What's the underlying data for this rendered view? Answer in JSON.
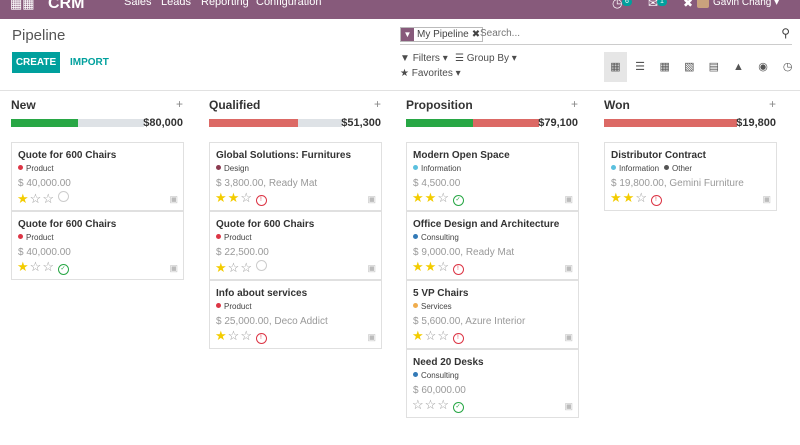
{
  "topbar": {
    "app_name": "CRM",
    "menu": [
      "Sales",
      "Leads",
      "Reporting",
      "Configuration"
    ],
    "badge_activity": "6",
    "badge_messages": "1",
    "user_name": "Gavin Chang"
  },
  "control_panel": {
    "breadcrumb": "Pipeline",
    "create_label": "CREATE",
    "import_label": "IMPORT",
    "search": {
      "facet_value": "My Pipeline",
      "placeholder": "Search..."
    },
    "filters_label": "Filters",
    "groupby_label": "Group By",
    "favorites_label": "Favorites"
  },
  "columns": [
    {
      "title": "New",
      "sum": "$80,000",
      "progress": {
        "green": 0.5,
        "red": 0.0
      },
      "cards": [
        {
          "title": "Quote for 600 Chairs",
          "tags": [
            {
              "name": "Product",
              "color": "#dc3545"
            }
          ],
          "amount": "$ 40,000.00",
          "stars": 1,
          "activity": "grey"
        },
        {
          "title": "Quote for 600 Chairs",
          "tags": [
            {
              "name": "Product",
              "color": "#dc3545"
            }
          ],
          "amount": "$ 40,000.00",
          "stars": 1,
          "activity": "green"
        }
      ]
    },
    {
      "title": "Qualified",
      "sum": "$51,300",
      "progress": {
        "green": 0.0,
        "red": 0.67
      },
      "cards": [
        {
          "title": "Global Solutions: Furnitures",
          "tags": [
            {
              "name": "Design",
              "color": "#8b3a50"
            }
          ],
          "amount": "$ 3,800.00, Ready Mat",
          "stars": 2,
          "activity": "red"
        },
        {
          "title": "Quote for 600 Chairs",
          "tags": [
            {
              "name": "Product",
              "color": "#dc3545"
            }
          ],
          "amount": "$ 22,500.00",
          "stars": 1,
          "activity": "grey"
        },
        {
          "title": "Info about services",
          "tags": [
            {
              "name": "Product",
              "color": "#dc3545"
            }
          ],
          "amount": "$ 25,000.00, Deco Addict",
          "stars": 1,
          "activity": "red"
        }
      ]
    },
    {
      "title": "Proposition",
      "sum": "$79,100",
      "progress": {
        "green": 0.5,
        "red": 0.5
      },
      "cards": [
        {
          "title": "Modern Open Space",
          "tags": [
            {
              "name": "Information",
              "color": "#5bc0de"
            }
          ],
          "amount": "$ 4,500.00",
          "stars": 2,
          "activity": "green"
        },
        {
          "title": "Office Design and Architecture",
          "tags": [
            {
              "name": "Consulting",
              "color": "#337ab7"
            }
          ],
          "amount": "$ 9,000.00, Ready Mat",
          "stars": 2,
          "activity": "red"
        },
        {
          "title": "5 VP Chairs",
          "tags": [
            {
              "name": "Services",
              "color": "#f0ad4e"
            }
          ],
          "amount": "$ 5,600.00, Azure Interior",
          "stars": 1,
          "activity": "red"
        },
        {
          "title": "Need 20 Desks",
          "tags": [
            {
              "name": "Consulting",
              "color": "#337ab7"
            }
          ],
          "amount": "$ 60,000.00",
          "stars": 0,
          "activity": "green"
        }
      ]
    },
    {
      "title": "Won",
      "sum": "$19,800",
      "progress": {
        "green": 0.0,
        "red": 1.0
      },
      "cards": [
        {
          "title": "Distributor Contract",
          "tags": [
            {
              "name": "Information",
              "color": "#5bc0de"
            },
            {
              "name": "Other",
              "color": "#555555"
            }
          ],
          "amount": "$ 19,800.00, Gemini Furniture",
          "stars": 2,
          "activity": "red"
        }
      ]
    }
  ]
}
